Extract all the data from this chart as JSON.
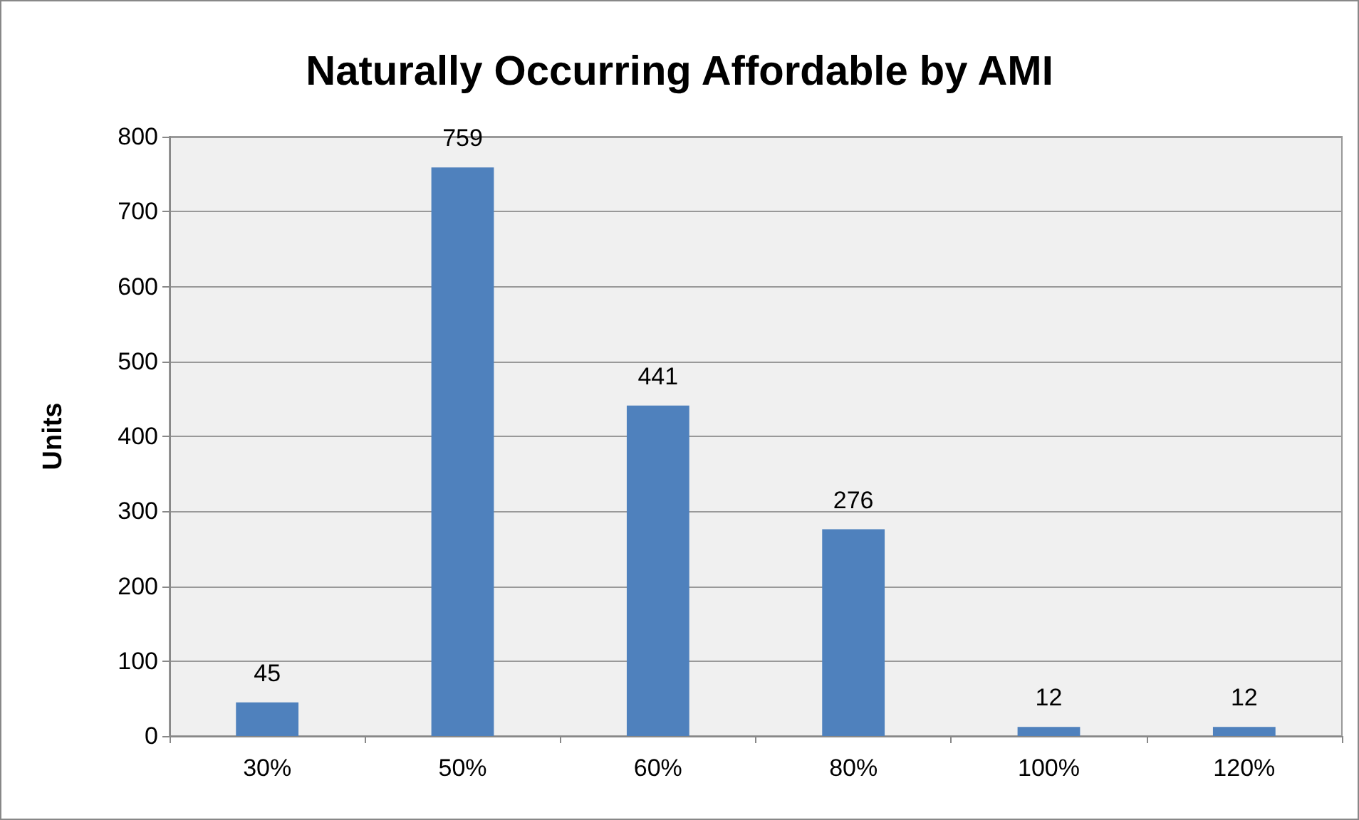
{
  "chart_data": {
    "type": "bar",
    "title": "Naturally Occurring Affordable by AMI",
    "ylabel": "Units",
    "categories": [
      "30%",
      "50%",
      "60%",
      "80%",
      "100%",
      "120%"
    ],
    "values": [
      45,
      759,
      441,
      276,
      12,
      12
    ],
    "color": "#4f81bd",
    "ylim": [
      0,
      800
    ],
    "yticks": [
      0,
      100,
      200,
      300,
      400,
      500,
      600,
      700,
      800
    ],
    "grid": "y",
    "data_labels": true
  }
}
